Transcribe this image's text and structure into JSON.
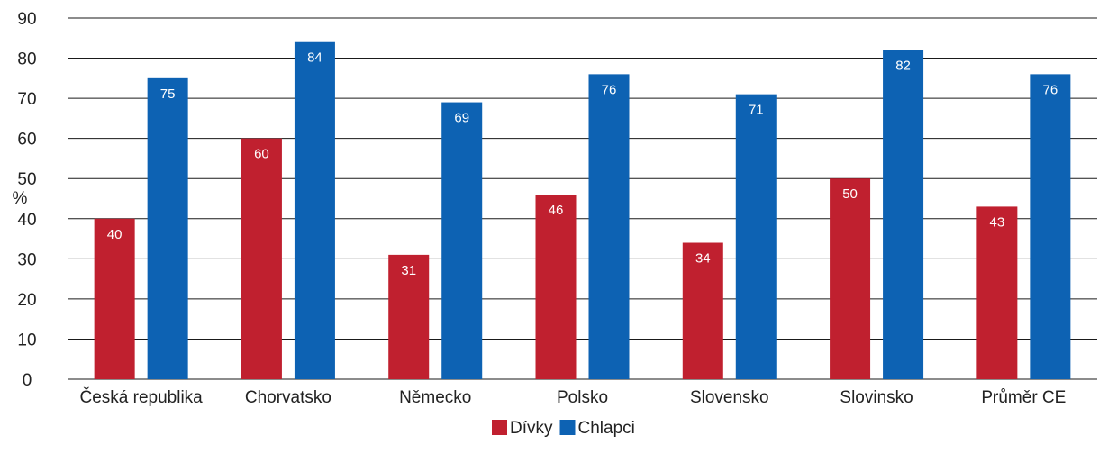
{
  "chart_data": {
    "type": "bar",
    "categories": [
      "Česká republika",
      "Chorvatsko",
      "Německo",
      "Polsko",
      "Slovensko",
      "Slovinsko",
      "Průměr CE"
    ],
    "series": [
      {
        "name": "Dívky",
        "color": "#c0202f",
        "values": [
          40,
          60,
          31,
          46,
          34,
          50,
          43
        ]
      },
      {
        "name": "Chlapci",
        "color": "#0d62b3",
        "values": [
          75,
          84,
          69,
          76,
          71,
          82,
          76
        ]
      }
    ],
    "ylabel": "%",
    "ylim": [
      0,
      90
    ],
    "yticks": [
      0,
      10,
      20,
      30,
      40,
      50,
      60,
      70,
      80,
      90
    ],
    "grid": true,
    "legend": "bottom-center",
    "data_labels": true
  }
}
